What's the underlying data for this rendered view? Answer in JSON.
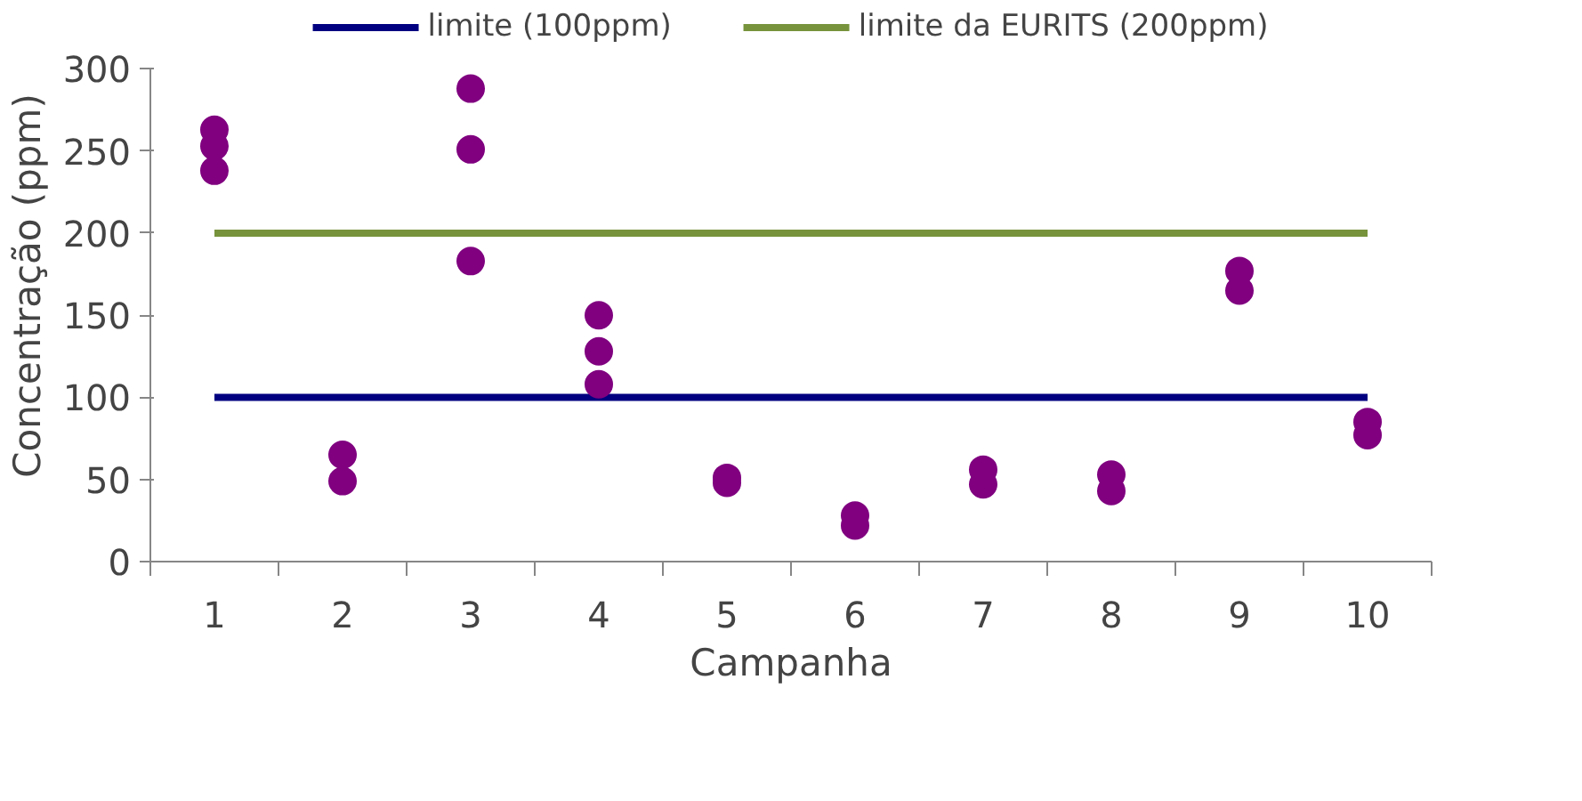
{
  "chart_data": {
    "type": "scatter",
    "xlabel": "Campanha",
    "ylabel": "Concentração (ppm)",
    "categories": [
      "1",
      "2",
      "3",
      "4",
      "5",
      "6",
      "7",
      "8",
      "9",
      "10"
    ],
    "ylim": [
      0,
      300
    ],
    "yticks": [
      0,
      50,
      100,
      150,
      200,
      250,
      300
    ],
    "grid": false,
    "legend": "top",
    "series": [
      {
        "type": "line",
        "name": "limite (100ppm)",
        "color": "#000080",
        "values": [
          100,
          100,
          100,
          100,
          100,
          100,
          100,
          100,
          100,
          100
        ]
      },
      {
        "type": "line",
        "name": "limite da EURITS (200ppm)",
        "color": "#77933c",
        "values": [
          200,
          200,
          200,
          200,
          200,
          200,
          200,
          200,
          200,
          200
        ]
      },
      {
        "marker": "circle",
        "color": "#800080",
        "x": [
          "1",
          "1",
          "1",
          "2",
          "2",
          "3",
          "3",
          "3",
          "4",
          "4",
          "4",
          "5",
          "5",
          "6",
          "6",
          "7",
          "7",
          "8",
          "8",
          "9",
          "9",
          "10",
          "10"
        ],
        "values": [
          263,
          253,
          238,
          65,
          49,
          288,
          251,
          183,
          150,
          128,
          108,
          51,
          48,
          28,
          22,
          56,
          47,
          53,
          43,
          177,
          165,
          85,
          77
        ]
      }
    ]
  }
}
